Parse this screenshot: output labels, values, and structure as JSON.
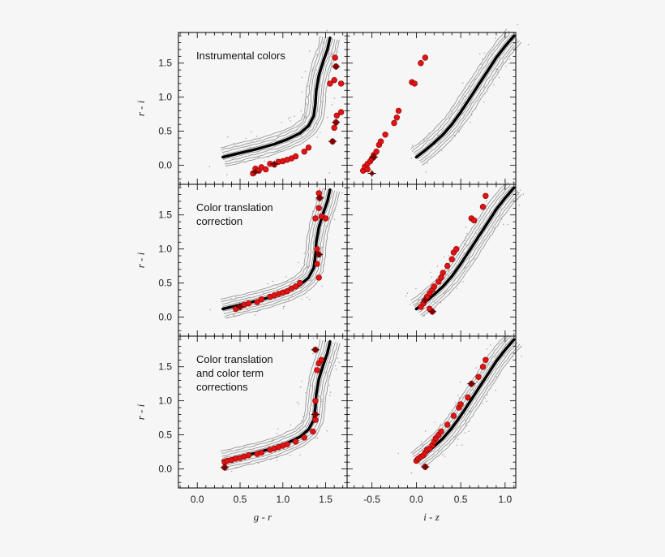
{
  "chart_data": [
    {
      "id": "instrumental-gr",
      "type": "scatter",
      "annotation_lines": [
        "Instrumental colors"
      ],
      "xlabel": "",
      "ylabel": "r - i",
      "xlim": [
        -0.22,
        1.75
      ],
      "ylim": [
        -0.28,
        1.95
      ],
      "y_ticks": [
        "0.0",
        "0.5",
        "1.0",
        "1.5"
      ],
      "y_tick_values": [
        0,
        0.5,
        1.0,
        1.5
      ],
      "x_ticks": [],
      "x_tick_values": [],
      "locus_color": "#000000",
      "contour_color": "#999999",
      "points_color": "#dd1111",
      "locus": [
        [
          0.3,
          0.12
        ],
        [
          0.5,
          0.18
        ],
        [
          0.7,
          0.24
        ],
        [
          0.9,
          0.31
        ],
        [
          1.05,
          0.38
        ],
        [
          1.2,
          0.47
        ],
        [
          1.3,
          0.58
        ],
        [
          1.36,
          0.72
        ],
        [
          1.38,
          0.9
        ],
        [
          1.39,
          1.1
        ],
        [
          1.42,
          1.32
        ],
        [
          1.47,
          1.52
        ],
        [
          1.52,
          1.7
        ],
        [
          1.55,
          1.87
        ]
      ],
      "points": [
        [
          0.65,
          -0.12
        ],
        [
          0.68,
          -0.05
        ],
        [
          0.72,
          -0.08
        ],
        [
          0.75,
          -0.03
        ],
        [
          0.8,
          -0.06
        ],
        [
          0.85,
          0.02
        ],
        [
          0.9,
          0.01
        ],
        [
          0.95,
          0.05
        ],
        [
          1.0,
          0.06
        ],
        [
          1.05,
          0.08
        ],
        [
          1.1,
          0.1
        ],
        [
          1.15,
          0.13
        ],
        [
          1.25,
          0.2
        ],
        [
          1.3,
          0.26
        ],
        [
          1.58,
          0.35
        ],
        [
          1.6,
          0.55
        ],
        [
          1.62,
          0.63
        ],
        [
          1.63,
          0.73
        ],
        [
          1.68,
          0.78
        ],
        [
          1.55,
          1.2
        ],
        [
          1.6,
          1.25
        ],
        [
          1.68,
          1.2
        ],
        [
          1.62,
          1.45
        ],
        [
          1.61,
          1.58
        ]
      ],
      "error_points": [
        [
          0.68,
          -0.1
        ],
        [
          0.9,
          0.02
        ],
        [
          1.58,
          0.35
        ],
        [
          1.62,
          0.63
        ],
        [
          1.62,
          1.45
        ]
      ]
    },
    {
      "id": "instrumental-iz",
      "type": "scatter",
      "annotation_lines": [],
      "xlabel": "",
      "ylabel": "",
      "xlim": [
        -0.78,
        1.12
      ],
      "ylim": [
        -0.28,
        1.95
      ],
      "y_ticks": [],
      "y_tick_values": [],
      "x_ticks": [],
      "x_tick_values": [],
      "locus": [
        [
          0.0,
          0.12
        ],
        [
          0.1,
          0.22
        ],
        [
          0.2,
          0.33
        ],
        [
          0.3,
          0.45
        ],
        [
          0.4,
          0.6
        ],
        [
          0.5,
          0.78
        ],
        [
          0.6,
          0.98
        ],
        [
          0.7,
          1.18
        ],
        [
          0.8,
          1.38
        ],
        [
          0.9,
          1.58
        ],
        [
          1.0,
          1.75
        ],
        [
          1.1,
          1.9
        ]
      ],
      "points": [
        [
          -0.6,
          -0.08
        ],
        [
          -0.58,
          -0.02
        ],
        [
          -0.55,
          0.02
        ],
        [
          -0.52,
          0.06
        ],
        [
          -0.5,
          0.1
        ],
        [
          -0.48,
          0.15
        ],
        [
          -0.45,
          0.2
        ],
        [
          -0.42,
          0.3
        ],
        [
          -0.4,
          0.35
        ],
        [
          -0.35,
          0.45
        ],
        [
          -0.25,
          0.62
        ],
        [
          -0.22,
          0.7
        ],
        [
          -0.2,
          0.8
        ],
        [
          -0.05,
          1.22
        ],
        [
          -0.02,
          1.2
        ],
        [
          0.05,
          1.5
        ],
        [
          0.1,
          1.58
        ],
        [
          -0.55,
          -0.06
        ],
        [
          -0.48,
          0.12
        ]
      ],
      "error_points": [
        [
          -0.5,
          -0.12
        ],
        [
          -0.48,
          0.12
        ]
      ]
    },
    {
      "id": "translation-gr",
      "type": "scatter",
      "annotation_lines": [
        "Color translation",
        "correction"
      ],
      "xlabel": "",
      "ylabel": "r - i",
      "xlim": [
        -0.22,
        1.75
      ],
      "ylim": [
        -0.28,
        1.95
      ],
      "y_ticks": [
        "0.0",
        "0.5",
        "1.0",
        "1.5"
      ],
      "y_tick_values": [
        0,
        0.5,
        1.0,
        1.5
      ],
      "x_ticks": [],
      "x_tick_values": [],
      "locus": [
        [
          0.3,
          0.12
        ],
        [
          0.5,
          0.18
        ],
        [
          0.7,
          0.24
        ],
        [
          0.9,
          0.31
        ],
        [
          1.05,
          0.38
        ],
        [
          1.2,
          0.47
        ],
        [
          1.3,
          0.58
        ],
        [
          1.36,
          0.72
        ],
        [
          1.38,
          0.9
        ],
        [
          1.39,
          1.1
        ],
        [
          1.42,
          1.32
        ],
        [
          1.47,
          1.52
        ],
        [
          1.52,
          1.7
        ],
        [
          1.55,
          1.87
        ]
      ],
      "points": [
        [
          0.45,
          0.12
        ],
        [
          0.5,
          0.15
        ],
        [
          0.55,
          0.18
        ],
        [
          0.6,
          0.2
        ],
        [
          0.7,
          0.22
        ],
        [
          0.75,
          0.26
        ],
        [
          0.85,
          0.3
        ],
        [
          0.9,
          0.32
        ],
        [
          0.95,
          0.34
        ],
        [
          1.0,
          0.36
        ],
        [
          1.05,
          0.38
        ],
        [
          1.1,
          0.42
        ],
        [
          1.15,
          0.45
        ],
        [
          1.2,
          0.5
        ],
        [
          1.42,
          0.58
        ],
        [
          1.4,
          0.78
        ],
        [
          1.42,
          0.92
        ],
        [
          1.4,
          1.0
        ],
        [
          1.38,
          1.45
        ],
        [
          1.45,
          1.48
        ],
        [
          1.5,
          1.45
        ],
        [
          1.42,
          1.6
        ],
        [
          1.43,
          1.75
        ],
        [
          1.42,
          1.82
        ]
      ],
      "error_points": [
        [
          0.5,
          0.15
        ],
        [
          1.42,
          0.92
        ],
        [
          1.43,
          1.75
        ]
      ]
    },
    {
      "id": "translation-iz",
      "type": "scatter",
      "annotation_lines": [],
      "xlabel": "",
      "ylabel": "",
      "xlim": [
        -0.78,
        1.12
      ],
      "ylim": [
        -0.28,
        1.95
      ],
      "y_ticks": [],
      "y_tick_values": [],
      "x_ticks": [],
      "x_tick_values": [],
      "locus": [
        [
          0.0,
          0.12
        ],
        [
          0.1,
          0.22
        ],
        [
          0.2,
          0.33
        ],
        [
          0.3,
          0.45
        ],
        [
          0.4,
          0.6
        ],
        [
          0.5,
          0.78
        ],
        [
          0.6,
          0.98
        ],
        [
          0.7,
          1.18
        ],
        [
          0.8,
          1.38
        ],
        [
          0.9,
          1.58
        ],
        [
          1.0,
          1.75
        ],
        [
          1.1,
          1.9
        ]
      ],
      "points": [
        [
          0.05,
          0.15
        ],
        [
          0.08,
          0.2
        ],
        [
          0.1,
          0.25
        ],
        [
          0.12,
          0.3
        ],
        [
          0.15,
          0.35
        ],
        [
          0.18,
          0.4
        ],
        [
          0.2,
          0.45
        ],
        [
          0.25,
          0.52
        ],
        [
          0.28,
          0.58
        ],
        [
          0.3,
          0.65
        ],
        [
          0.35,
          0.75
        ],
        [
          0.4,
          0.85
        ],
        [
          0.42,
          0.95
        ],
        [
          0.45,
          1.0
        ],
        [
          0.62,
          1.45
        ],
        [
          0.65,
          1.42
        ],
        [
          0.75,
          1.62
        ],
        [
          0.78,
          1.78
        ],
        [
          0.18,
          0.08
        ],
        [
          0.15,
          0.12
        ]
      ],
      "error_points": [
        [
          0.18,
          0.08
        ],
        [
          0.1,
          0.25
        ]
      ]
    },
    {
      "id": "term-gr",
      "type": "scatter",
      "annotation_lines": [
        "Color translation",
        "and color term",
        "corrections"
      ],
      "xlabel": "g - r",
      "ylabel": "r - i",
      "xlim": [
        -0.22,
        1.75
      ],
      "ylim": [
        -0.28,
        1.95
      ],
      "y_ticks": [
        "0.0",
        "0.5",
        "1.0",
        "1.5"
      ],
      "y_tick_values": [
        0,
        0.5,
        1.0,
        1.5
      ],
      "x_ticks": [
        "0.0",
        "0.5",
        "1.0",
        "1.5"
      ],
      "x_tick_values": [
        0,
        0.5,
        1.0,
        1.5
      ],
      "locus": [
        [
          0.3,
          0.12
        ],
        [
          0.5,
          0.18
        ],
        [
          0.7,
          0.24
        ],
        [
          0.9,
          0.31
        ],
        [
          1.05,
          0.38
        ],
        [
          1.2,
          0.47
        ],
        [
          1.3,
          0.58
        ],
        [
          1.36,
          0.72
        ],
        [
          1.38,
          0.9
        ],
        [
          1.39,
          1.1
        ],
        [
          1.42,
          1.32
        ],
        [
          1.47,
          1.52
        ],
        [
          1.52,
          1.7
        ],
        [
          1.55,
          1.87
        ]
      ],
      "points": [
        [
          0.32,
          0.1
        ],
        [
          0.35,
          0.12
        ],
        [
          0.4,
          0.13
        ],
        [
          0.45,
          0.15
        ],
        [
          0.5,
          0.16
        ],
        [
          0.55,
          0.18
        ],
        [
          0.6,
          0.2
        ],
        [
          0.7,
          0.22
        ],
        [
          0.75,
          0.24
        ],
        [
          0.85,
          0.28
        ],
        [
          0.9,
          0.3
        ],
        [
          0.95,
          0.32
        ],
        [
          1.0,
          0.34
        ],
        [
          1.05,
          0.36
        ],
        [
          1.15,
          0.4
        ],
        [
          1.25,
          0.46
        ],
        [
          1.35,
          0.55
        ],
        [
          1.38,
          0.72
        ],
        [
          1.38,
          0.8
        ],
        [
          1.38,
          1.0
        ],
        [
          1.4,
          1.45
        ],
        [
          1.42,
          1.55
        ],
        [
          1.45,
          1.6
        ],
        [
          1.38,
          1.75
        ],
        [
          0.32,
          0.02
        ]
      ],
      "error_points": [
        [
          0.32,
          0.02
        ],
        [
          1.38,
          0.8
        ],
        [
          1.38,
          1.75
        ]
      ]
    },
    {
      "id": "term-iz",
      "type": "scatter",
      "annotation_lines": [],
      "xlabel": "i - z",
      "ylabel": "",
      "xlim": [
        -0.78,
        1.12
      ],
      "ylim": [
        -0.28,
        1.95
      ],
      "y_ticks": [],
      "y_tick_values": [],
      "x_ticks": [
        "-0.5",
        "0.0",
        "0.5",
        "1.0"
      ],
      "x_tick_values": [
        -0.5,
        0,
        0.5,
        1.0
      ],
      "locus": [
        [
          0.0,
          0.12
        ],
        [
          0.1,
          0.22
        ],
        [
          0.2,
          0.33
        ],
        [
          0.3,
          0.45
        ],
        [
          0.4,
          0.6
        ],
        [
          0.5,
          0.78
        ],
        [
          0.6,
          0.98
        ],
        [
          0.7,
          1.18
        ],
        [
          0.8,
          1.38
        ],
        [
          0.9,
          1.58
        ],
        [
          1.0,
          1.75
        ],
        [
          1.1,
          1.9
        ]
      ],
      "points": [
        [
          0.0,
          0.12
        ],
        [
          0.02,
          0.15
        ],
        [
          0.05,
          0.18
        ],
        [
          0.08,
          0.2
        ],
        [
          0.1,
          0.24
        ],
        [
          0.12,
          0.28
        ],
        [
          0.15,
          0.3
        ],
        [
          0.18,
          0.35
        ],
        [
          0.2,
          0.4
        ],
        [
          0.22,
          0.45
        ],
        [
          0.25,
          0.5
        ],
        [
          0.28,
          0.55
        ],
        [
          0.35,
          0.65
        ],
        [
          0.42,
          0.78
        ],
        [
          0.48,
          0.9
        ],
        [
          0.5,
          0.95
        ],
        [
          0.58,
          1.05
        ],
        [
          0.62,
          1.25
        ],
        [
          0.7,
          1.35
        ],
        [
          0.75,
          1.5
        ],
        [
          0.78,
          1.6
        ],
        [
          0.1,
          0.03
        ]
      ],
      "error_points": [
        [
          0.1,
          0.03
        ],
        [
          0.62,
          1.25
        ]
      ]
    }
  ]
}
